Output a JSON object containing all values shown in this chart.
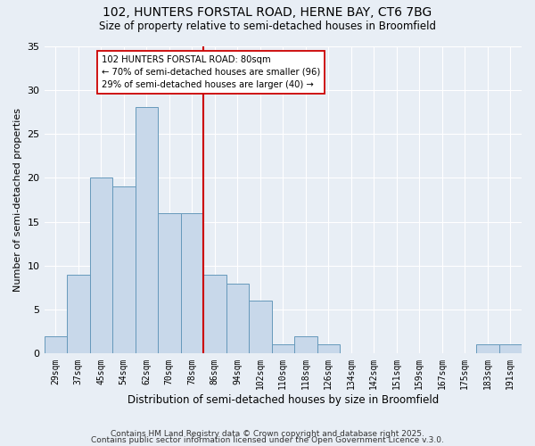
{
  "title1": "102, HUNTERS FORSTAL ROAD, HERNE BAY, CT6 7BG",
  "title2": "Size of property relative to semi-detached houses in Broomfield",
  "xlabel": "Distribution of semi-detached houses by size in Broomfield",
  "ylabel": "Number of semi-detached properties",
  "categories": [
    "29sqm",
    "37sqm",
    "45sqm",
    "54sqm",
    "62sqm",
    "70sqm",
    "78sqm",
    "86sqm",
    "94sqm",
    "102sqm",
    "110sqm",
    "118sqm",
    "126sqm",
    "134sqm",
    "142sqm",
    "151sqm",
    "159sqm",
    "167sqm",
    "175sqm",
    "183sqm",
    "191sqm"
  ],
  "values": [
    2,
    9,
    20,
    19,
    28,
    16,
    16,
    9,
    8,
    6,
    1,
    2,
    1,
    0,
    0,
    0,
    0,
    0,
    0,
    1,
    1
  ],
  "bar_color": "#c8d8ea",
  "bar_edge_color": "#6699bb",
  "vline_color": "#cc0000",
  "annotation_title": "102 HUNTERS FORSTAL ROAD: 80sqm",
  "annotation_line1": "← 70% of semi-detached houses are smaller (96)",
  "annotation_line2": "29% of semi-detached houses are larger (40) →",
  "annotation_box_color": "#ffffff",
  "annotation_box_edge": "#cc0000",
  "footer1": "Contains HM Land Registry data © Crown copyright and database right 2025.",
  "footer2": "Contains public sector information licensed under the Open Government Licence v.3.0.",
  "ylim": [
    0,
    35
  ],
  "yticks": [
    0,
    5,
    10,
    15,
    20,
    25,
    30,
    35
  ],
  "bg_color": "#e8eef5",
  "grid_color": "#ffffff"
}
